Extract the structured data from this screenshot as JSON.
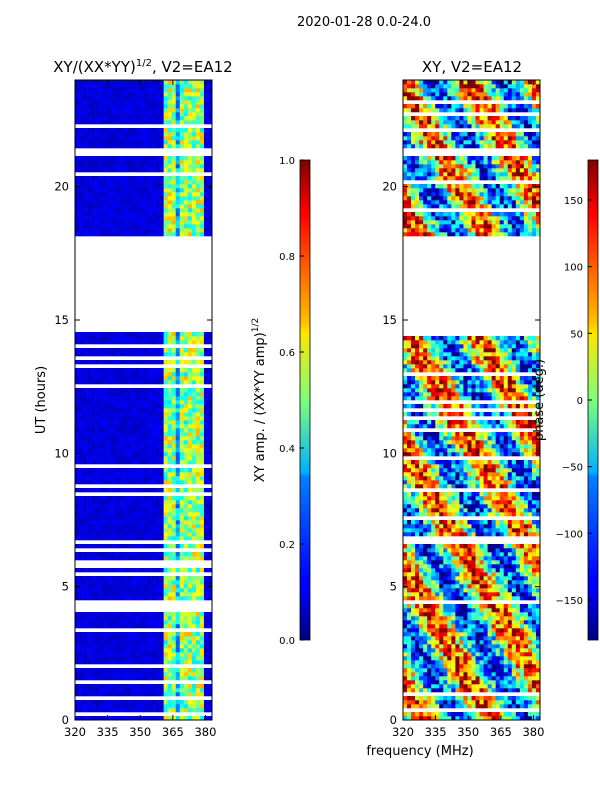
{
  "chart_data": [
    {
      "type": "heatmap",
      "title_prefix": "XY/(XX*YY)",
      "title_sup": "1/2",
      "title_suffix": ", V2=EA12",
      "xlabel": "",
      "ylabel": "UT (hours)",
      "xlim": [
        320,
        383
      ],
      "ylim": [
        0,
        24
      ],
      "xticks": [
        320,
        335,
        350,
        365,
        380
      ],
      "yticks": [
        0,
        5,
        10,
        15,
        20
      ],
      "gap_hours": [
        [
          14.5,
          18.2
        ]
      ],
      "colorbar": {
        "label_main": "XY amp. / (XX*YY amp)",
        "label_sup": "1/2",
        "range": [
          0.0,
          1.0
        ],
        "ticks": [
          "0.0",
          "0.2",
          "0.4",
          "0.6",
          "0.8",
          "1.0"
        ]
      }
    },
    {
      "type": "heatmap",
      "title": "XY, V2=EA12",
      "xlabel": "frequency (MHz)",
      "ylabel": "",
      "xlim": [
        320,
        383
      ],
      "ylim": [
        0,
        24
      ],
      "xticks": [
        320,
        335,
        350,
        365,
        380
      ],
      "yticks": [
        0,
        5,
        10,
        15,
        20
      ],
      "gap_hours": [
        [
          14.5,
          18.2
        ]
      ],
      "colorbar": {
        "label": "phase (deg.)",
        "range": [
          -180,
          180
        ],
        "ticks": [
          "150",
          "100",
          "50",
          "0",
          "−50",
          "−100",
          "−150"
        ],
        "tick_values": [
          150,
          100,
          50,
          0,
          -50,
          -100,
          -150
        ]
      }
    }
  ],
  "suptitle": "2020-01-28 0.0-24.0"
}
